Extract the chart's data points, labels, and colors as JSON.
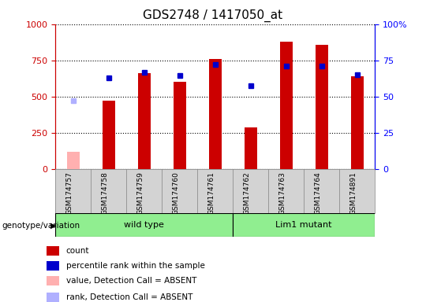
{
  "title": "GDS2748 / 1417050_at",
  "samples": [
    "GSM174757",
    "GSM174758",
    "GSM174759",
    "GSM174760",
    "GSM174761",
    "GSM174762",
    "GSM174763",
    "GSM174764",
    "GSM174891"
  ],
  "counts": [
    null,
    470,
    660,
    600,
    760,
    290,
    880,
    860,
    640
  ],
  "absent_counts": [
    120,
    null,
    null,
    null,
    null,
    null,
    null,
    null,
    null
  ],
  "percentile_ranks": [
    null,
    630,
    670,
    645,
    720,
    575,
    710,
    710,
    650
  ],
  "absent_ranks": [
    470,
    null,
    null,
    null,
    null,
    null,
    null,
    null,
    null
  ],
  "ylim_left": [
    0,
    1000
  ],
  "ylim_right": [
    0,
    100
  ],
  "yticks_left": [
    0,
    250,
    500,
    750,
    1000
  ],
  "yticks_right": [
    0,
    25,
    50,
    75,
    100
  ],
  "bar_color": "#CC0000",
  "bar_color_absent": "#FFB0B0",
  "dot_color": "#0000CC",
  "dot_color_absent": "#B0B0FF",
  "groups": [
    {
      "label": "wild type",
      "indices": [
        0,
        1,
        2,
        3,
        4
      ],
      "color": "#90EE90"
    },
    {
      "label": "Lim1 mutant",
      "indices": [
        5,
        6,
        7,
        8
      ],
      "color": "#90EE90"
    }
  ],
  "group_label": "genotype/variation",
  "legend_items": [
    {
      "label": "count",
      "color": "#CC0000"
    },
    {
      "label": "percentile rank within the sample",
      "color": "#0000CC"
    },
    {
      "label": "value, Detection Call = ABSENT",
      "color": "#FFB0B0"
    },
    {
      "label": "rank, Detection Call = ABSENT",
      "color": "#B0B0FF"
    }
  ],
  "bar_width": 0.35
}
